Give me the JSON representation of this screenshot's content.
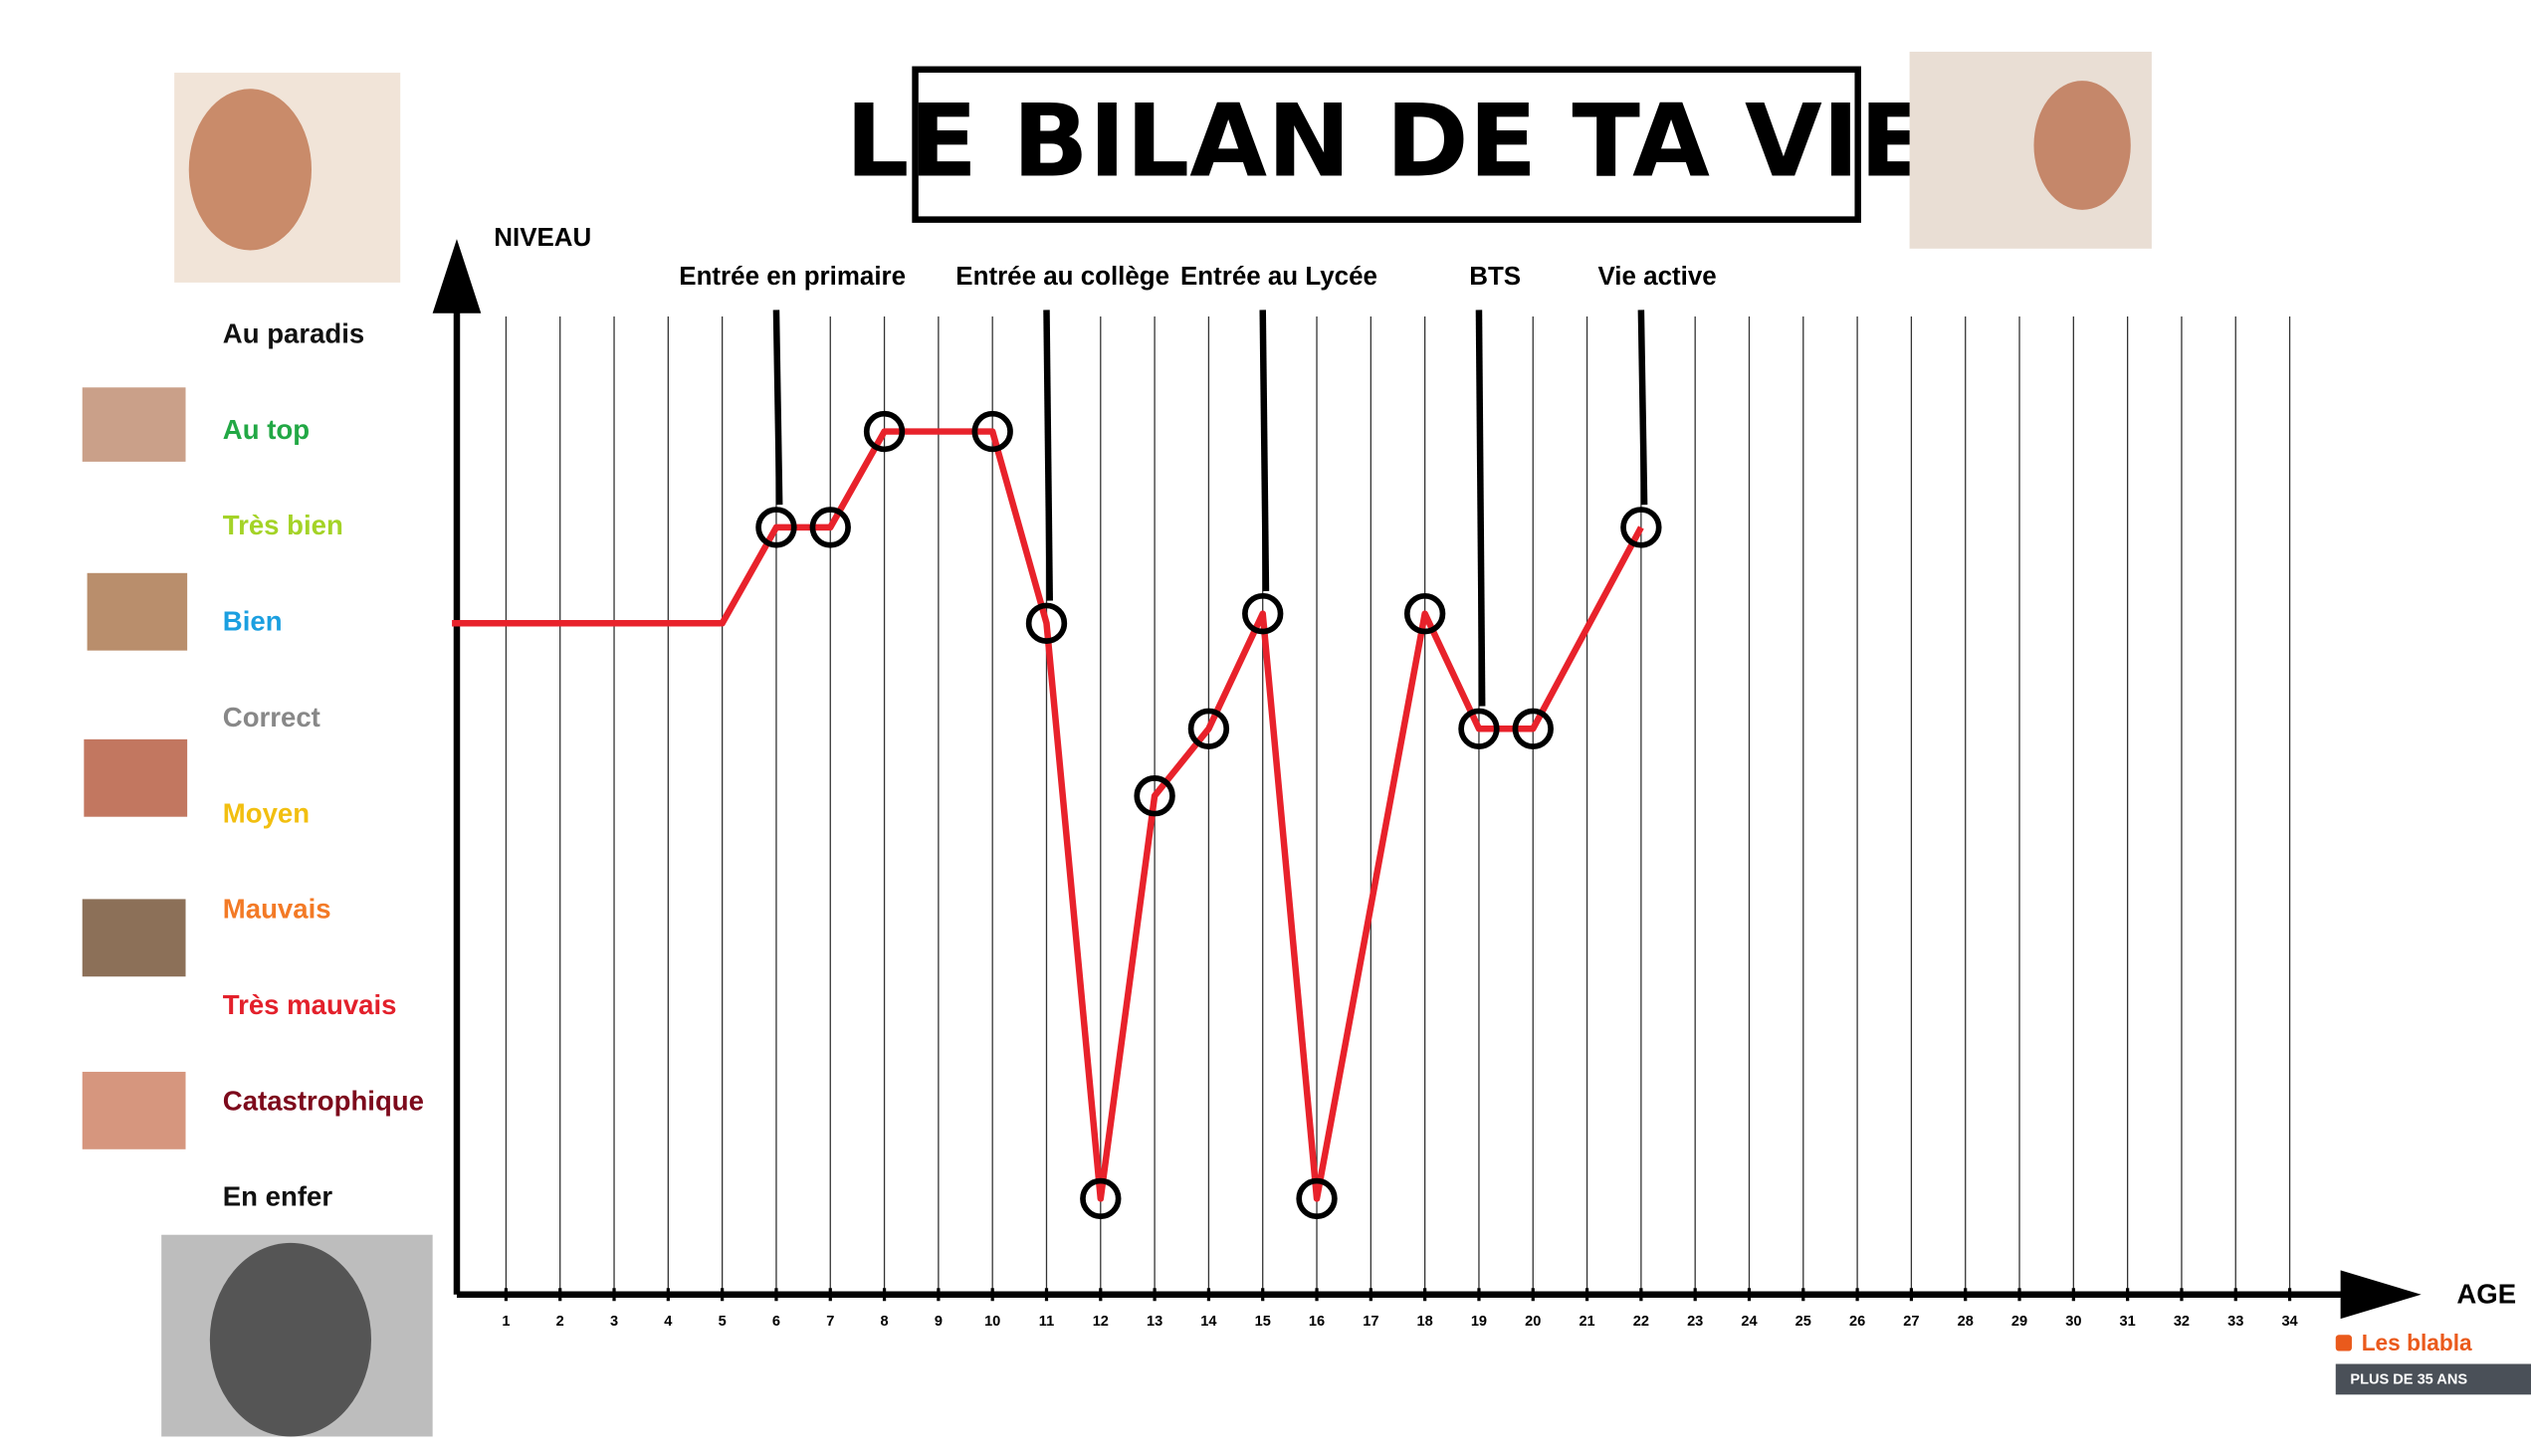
{
  "chart_data": {
    "type": "line",
    "title": "LE BILAN DE TA VIE",
    "y_label": "NIVEAU",
    "x_label": "AGE",
    "xlim": [
      0,
      35
    ],
    "xticks": [
      1,
      2,
      3,
      4,
      5,
      6,
      7,
      8,
      9,
      10,
      11,
      12,
      13,
      14,
      15,
      16,
      17,
      18,
      19,
      20,
      21,
      22,
      23,
      24,
      25,
      26,
      27,
      28,
      29,
      30,
      31,
      32,
      33,
      34
    ],
    "ylim": [
      0,
      10.2
    ],
    "yticks": [
      {
        "value": 10,
        "label": "Au paradis"
      },
      {
        "value": 9,
        "label": "Au top"
      },
      {
        "value": 8,
        "label": "Très bien"
      },
      {
        "value": 7,
        "label": "Bien"
      },
      {
        "value": 6,
        "label": "Correct"
      },
      {
        "value": 5,
        "label": "Moyen"
      },
      {
        "value": 4,
        "label": "Mauvais"
      },
      {
        "value": 3,
        "label": "Très mauvais"
      },
      {
        "value": 2,
        "label": "Catastrophique"
      },
      {
        "value": 1,
        "label": "En enfer"
      }
    ],
    "ytick_colors": [
      "#111111",
      "#22a845",
      "#a4d327",
      "#1b9fe0",
      "#888888",
      "#f2bf10",
      "#f37a26",
      "#e3202b",
      "#7d0a1c",
      "#111111"
    ],
    "color": "#e8222b",
    "marker_color": "#000000",
    "x": [
      0,
      5,
      6,
      7,
      8,
      10,
      11,
      12,
      13,
      14,
      15,
      16,
      18,
      19,
      20,
      22
    ],
    "values": [
      7,
      7,
      8,
      8,
      9,
      9,
      7,
      1,
      5.2,
      5.9,
      7.1,
      1,
      7.1,
      5.9,
      5.9,
      8
    ],
    "annotations": [
      {
        "text": "Entrée en primaire",
        "x": 6
      },
      {
        "text": "Entrée au collège",
        "x": 11
      },
      {
        "text": "Entrée au Lycée",
        "x": 15
      },
      {
        "text": "BTS",
        "x": 19
      },
      {
        "text": "Vie active",
        "x": 22
      }
    ]
  },
  "badge": {
    "title": "Les blabla",
    "subtitle": "PLUS DE 35 ANS"
  }
}
